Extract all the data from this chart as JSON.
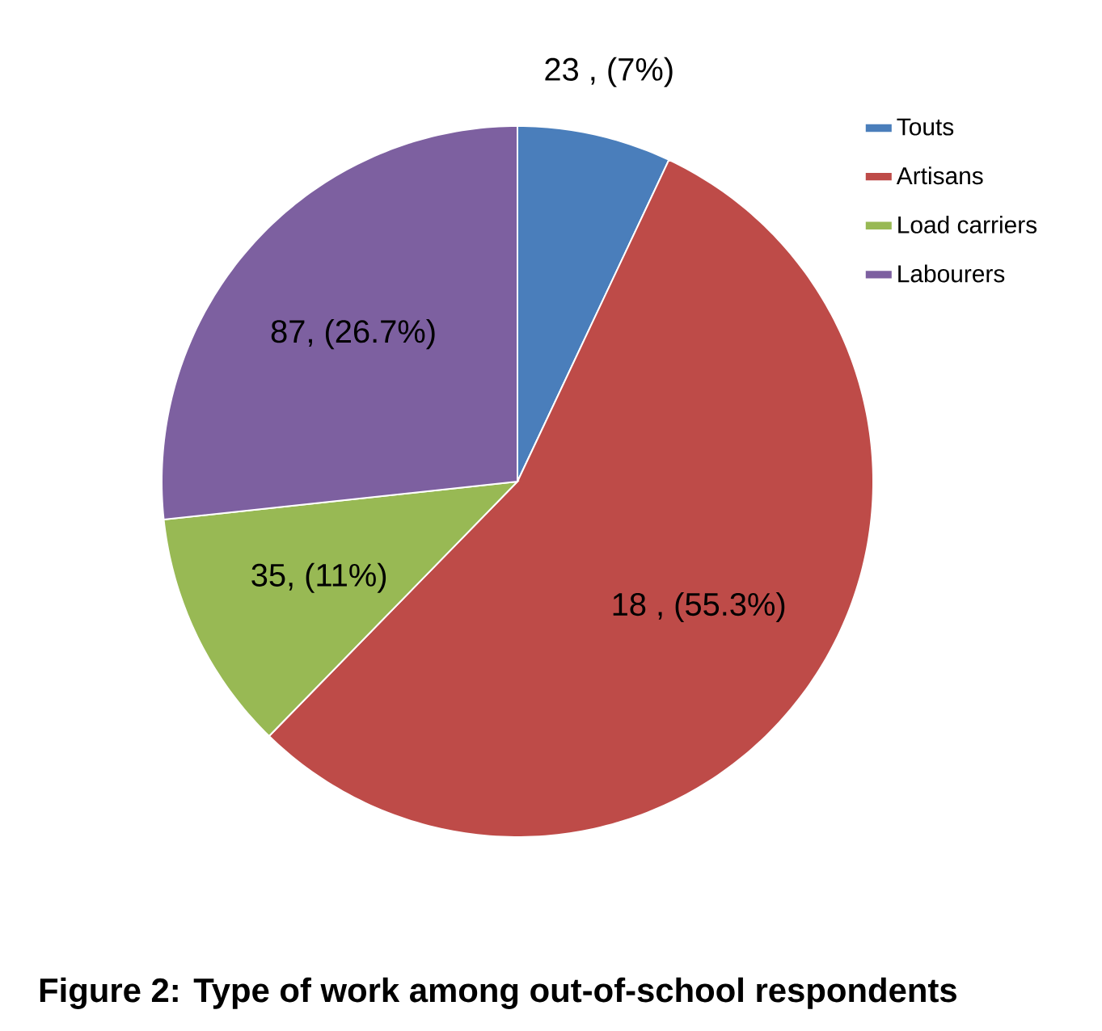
{
  "chart_data": {
    "type": "pie",
    "title": "Figure 2: Type of work among out-of-school respondents",
    "categories": [
      "Touts",
      "Artisans",
      "Load carriers",
      "Labourers"
    ],
    "values": [
      7,
      55.3,
      11,
      26.7
    ],
    "colors": [
      "#4a7ebb",
      "#be4b48",
      "#98b954",
      "#7d60a0"
    ],
    "value_labels": [
      "23 , (7%)",
      "18 , (55.3%)",
      "35, (11%)",
      "87, (26.7%)"
    ],
    "legend": "top right"
  }
}
